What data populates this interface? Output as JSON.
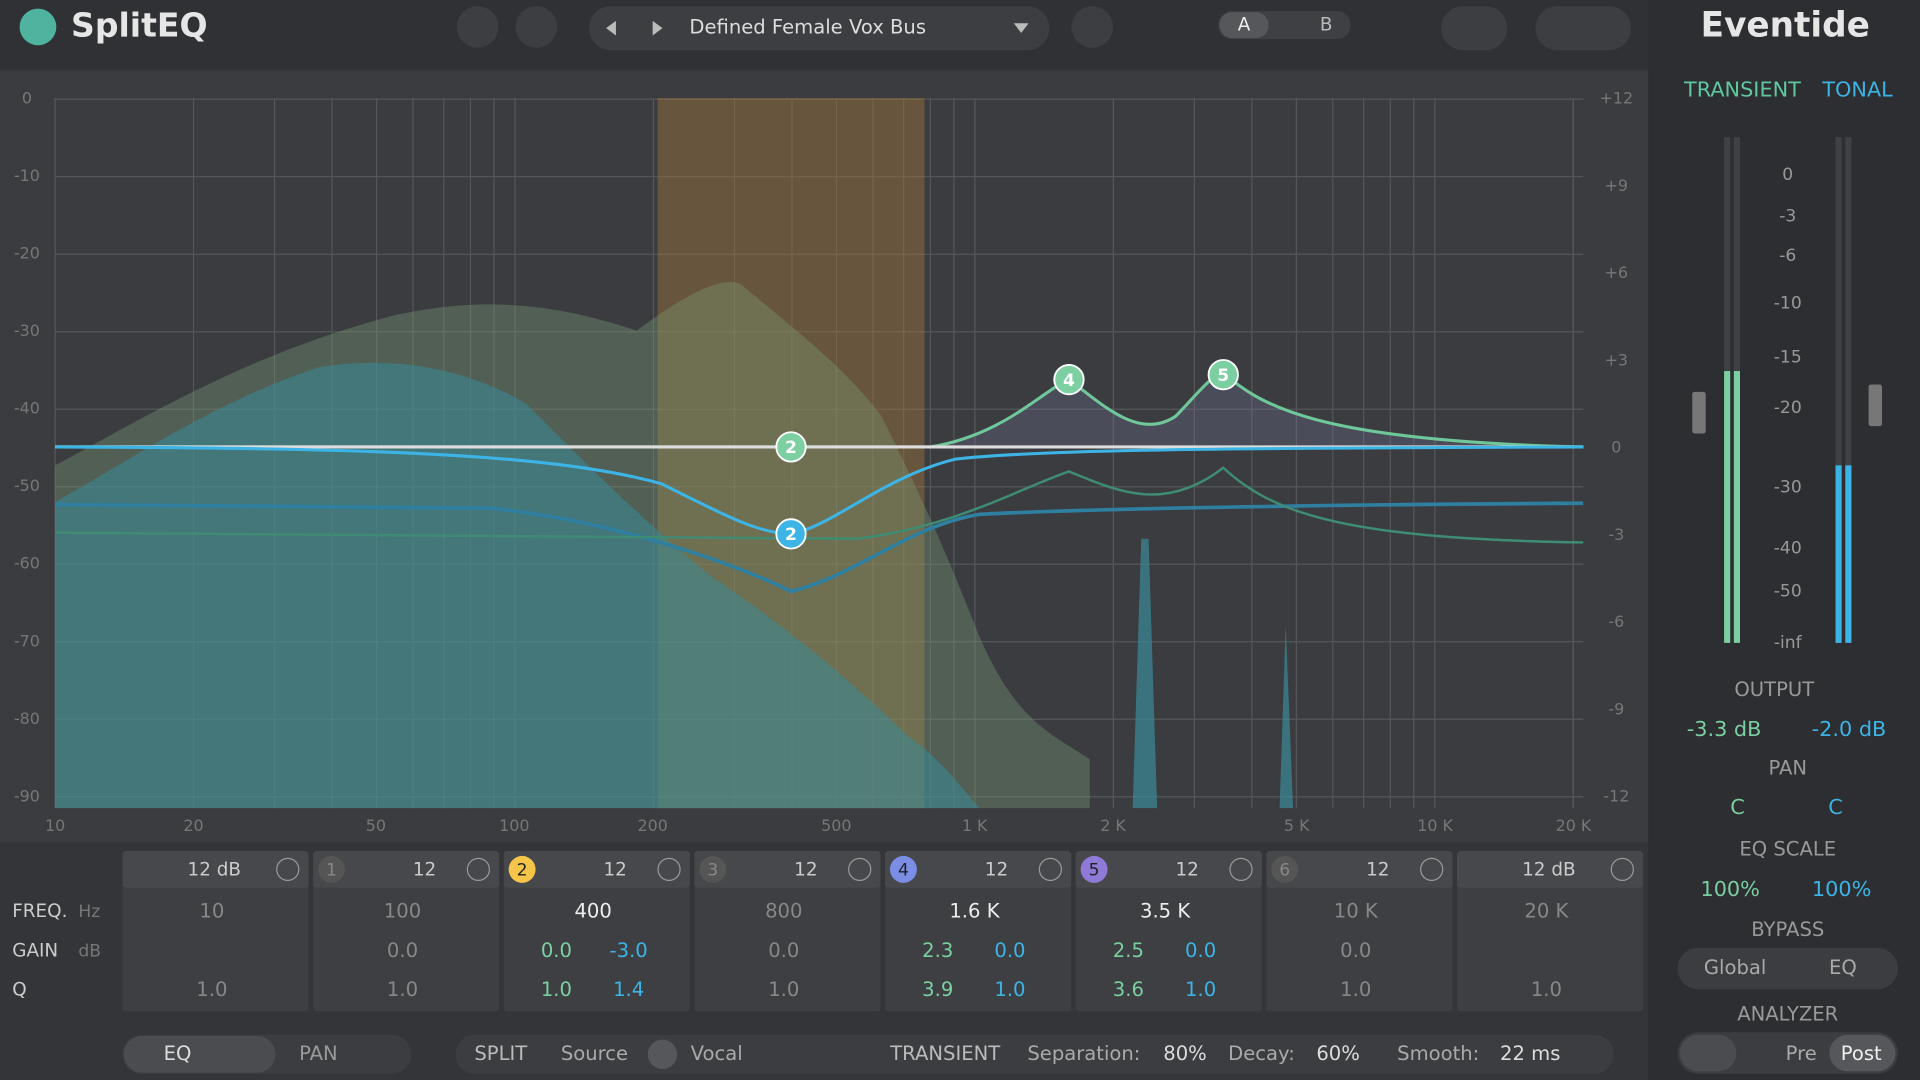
{
  "header": {
    "logo": "SplitEQ",
    "preset": "Defined Female Vox Bus",
    "ab": [
      "A",
      "B"
    ],
    "brand": "Eventide"
  },
  "display": {
    "left_axis": [
      "0",
      "-10",
      "-20",
      "-30",
      "-40",
      "-50",
      "-60",
      "-70",
      "-80",
      "-90"
    ],
    "right_axis": [
      "+12",
      "+9",
      "+6",
      "+3",
      "0",
      "-3",
      "-6",
      "-9",
      "-12"
    ],
    "freq_axis": [
      "10",
      "20",
      "50",
      "100",
      "200",
      "500",
      "1 K",
      "2 K",
      "5 K",
      "10 K",
      "20 K"
    ],
    "nodes": [
      "2",
      "2",
      "4",
      "5"
    ]
  },
  "table": {
    "row_labels": [
      "FREQ.",
      "GAIN",
      "Q"
    ],
    "row_units": [
      "Hz",
      "dB"
    ],
    "bands": [
      {
        "head": "12 dB",
        "freq": "10",
        "gain": [],
        "q": [
          "1.0"
        ]
      },
      {
        "num": "1",
        "head": "12",
        "freq": "100",
        "gain": [
          "0.0"
        ],
        "q": [
          "1.0"
        ]
      },
      {
        "num": "2",
        "head": "12",
        "freq": "400",
        "gain": [
          "0.0",
          "-3.0"
        ],
        "q": [
          "1.0",
          "1.4"
        ]
      },
      {
        "num": "3",
        "head": "12",
        "freq": "800",
        "gain": [
          "0.0"
        ],
        "q": [
          "1.0"
        ]
      },
      {
        "num": "4",
        "head": "12",
        "freq": "1.6 K",
        "gain": [
          "2.3",
          "0.0"
        ],
        "q": [
          "3.9",
          "1.0"
        ]
      },
      {
        "num": "5",
        "head": "12",
        "freq": "3.5 K",
        "gain": [
          "2.5",
          "0.0"
        ],
        "q": [
          "3.6",
          "1.0"
        ]
      },
      {
        "num": "6",
        "head": "12",
        "freq": "10 K",
        "gain": [
          "0.0"
        ],
        "q": [
          "1.0"
        ]
      },
      {
        "head": "12 dB",
        "freq": "20 K",
        "gain": [],
        "q": [
          "1.0"
        ]
      }
    ]
  },
  "side": {
    "modes": [
      "TRANSIENT",
      "TONAL"
    ],
    "meter_scale": [
      "0",
      "-3",
      "-6",
      "-10",
      "-15",
      "-20",
      "-30",
      "-40",
      "-50",
      "-inf"
    ],
    "output_label": "OUTPUT",
    "output": [
      "-3.3 dB",
      "-2.0 dB"
    ],
    "pan_label": "PAN",
    "pan": [
      "C",
      "C"
    ],
    "eq_scale_label": "EQ SCALE",
    "eq_scale": [
      "100%",
      "100%"
    ],
    "bypass_label": "BYPASS",
    "bypass": [
      "Global",
      "EQ"
    ],
    "analyzer_label": "ANALYZER",
    "analyzer": [
      "Pre",
      "Post"
    ]
  },
  "footer": {
    "eq": "EQ",
    "pan": "PAN",
    "split": "SPLIT",
    "source_label": "Source",
    "source": "Vocal",
    "mode": "TRANSIENT",
    "separation_label": "Separation:",
    "separation": "80%",
    "decay_label": "Decay:",
    "decay": "60%",
    "smooth_label": "Smooth:",
    "smooth": "22 ms"
  }
}
